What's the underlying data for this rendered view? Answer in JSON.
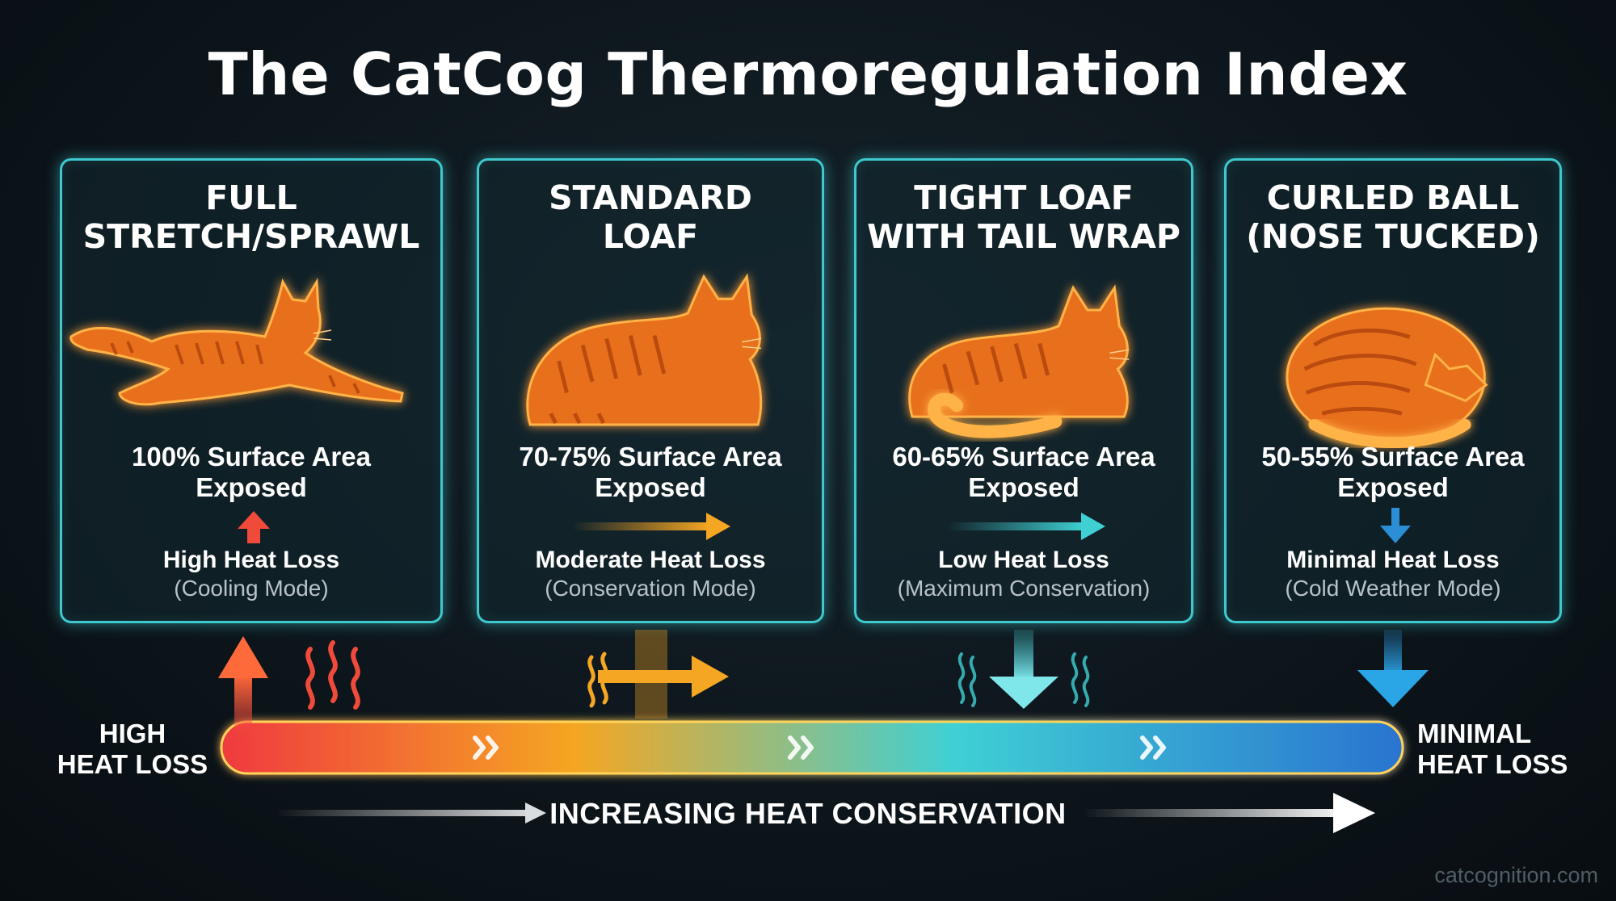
{
  "title": "The CatCog Thermoregulation Index",
  "cards": [
    {
      "title_lines": [
        "FULL",
        "STRETCH/SPRAWL"
      ],
      "surface_lines": [
        "100% Surface Area",
        "Exposed"
      ],
      "heat_loss": "High Heat Loss",
      "mode": "(Cooling Mode)",
      "arrow_icon": "arrow-up-icon"
    },
    {
      "title_lines": [
        "STANDARD",
        "LOAF"
      ],
      "surface_lines": [
        "70-75% Surface Area",
        "Exposed"
      ],
      "heat_loss": "Moderate Heat Loss",
      "mode": "(Conservation Mode)",
      "arrow_icon": "arrow-right-icon"
    },
    {
      "title_lines": [
        "TIGHT LOAF",
        "WITH TAIL WRAP"
      ],
      "surface_lines": [
        "60-65% Surface Area",
        "Exposed"
      ],
      "heat_loss": "Low Heat Loss",
      "mode": "(Maximum Conservation)",
      "arrow_icon": "arrow-right-icon"
    },
    {
      "title_lines": [
        "CURLED BALL",
        "(NOSE TUCKED)"
      ],
      "surface_lines": [
        "50-55% Surface Area",
        "Exposed"
      ],
      "heat_loss": "Minimal Heat Loss",
      "mode": "(Cold Weather Mode)",
      "arrow_icon": "arrow-down-icon"
    }
  ],
  "scale": {
    "left_label_lines": [
      "HIGH",
      "HEAT LOSS"
    ],
    "right_label_lines": [
      "MINIMAL",
      "HEAT LOSS"
    ],
    "axis_label": "INCREASING HEAT CONSERVATION"
  },
  "watermark": "catcognition.com",
  "colors": {
    "card_border": "#3ec9cf",
    "hot": "#ef3a3f",
    "warm": "#f5a623",
    "cool": "#3fd0d4",
    "cold": "#2a8fd6",
    "cat_fill": "#e8701e",
    "cat_glow": "#ffb347"
  }
}
